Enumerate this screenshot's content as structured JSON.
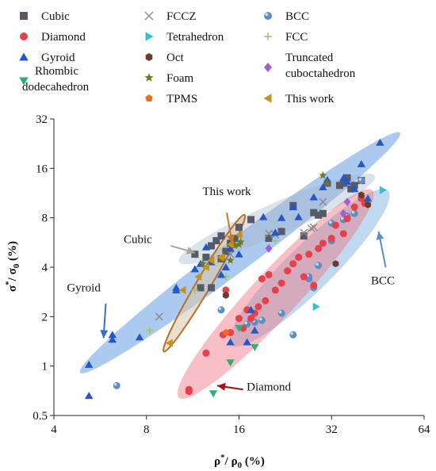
{
  "chart_data": {
    "type": "scatter",
    "xscale": "log2",
    "yscale": "log2",
    "xlim": [
      4,
      64
    ],
    "ylim": [
      0.5,
      32
    ],
    "x_ticks": [
      "4",
      "8",
      "16",
      "32",
      "64"
    ],
    "y_ticks": [
      "0.5",
      "1",
      "2",
      "4",
      "8",
      "16",
      "32"
    ],
    "xlabel_main": "ρ",
    "xlabel_sup": "*",
    "xlabel_mid": "/ ρ",
    "xlabel_sub": "0",
    "xlabel_unit": " (%)",
    "ylabel_main": "σ",
    "ylabel_sup": "*",
    "ylabel_mid": "/ σ",
    "ylabel_sub": "0",
    "ylabel_unit": " (%)",
    "legend": [
      {
        "label": "Cubic",
        "marker": "square",
        "color": "#555a66"
      },
      {
        "label": "FCCZ",
        "marker": "x",
        "color": "#8a8a8a"
      },
      {
        "label": "BCC",
        "marker": "sphere",
        "color": "#5b8fc4"
      },
      {
        "label": "Diamond",
        "marker": "circle",
        "color": "#e6404a"
      },
      {
        "label": "Tetrahedron",
        "marker": "tri-right",
        "color": "#2fc4cc"
      },
      {
        "label": "FCC",
        "marker": "plus",
        "color": "#9cc460"
      },
      {
        "label": "Gyroid",
        "marker": "tri-up",
        "color": "#2457c8"
      },
      {
        "label": "Oct",
        "marker": "hexagon",
        "color": "#6e3a30"
      },
      {
        "label": "Truncated",
        "label2": "cuboctahedron",
        "marker": "diamond",
        "color": "#a15fd6"
      },
      {
        "label": "Rhombic",
        "label2": "dodecahedron",
        "marker": "tri-down",
        "color": "#30b070"
      },
      {
        "label": "Foam",
        "marker": "star",
        "color": "#6e7a20"
      },
      {
        "label": "This work",
        "marker": "tri-left",
        "color": "#c8921a"
      },
      {
        "label": "TPMS",
        "marker": "pentagon",
        "color": "#f06a1e"
      }
    ],
    "regions": [
      {
        "name": "Gyroid",
        "color": "#3a7fd8",
        "opacity": 0.42
      },
      {
        "name": "BCC",
        "color": "#5b9cd6",
        "opacity": 0.38
      },
      {
        "name": "Cubic",
        "color": "#a4b6c8",
        "opacity": 0.4
      },
      {
        "name": "Diamond",
        "color": "#ee6a78",
        "opacity": 0.42
      },
      {
        "name": "This work",
        "color": "#d8c6a8",
        "opacity": 0.55,
        "stroke": "#b86e2a"
      }
    ],
    "annotations": [
      {
        "text": "This work",
        "x": 14.6,
        "y": 11.0
      },
      {
        "text": "Cubic",
        "x": 7.5,
        "y": 5.6
      },
      {
        "text": "Gyroid",
        "x": 5.0,
        "y": 2.85
      },
      {
        "text": "BCC",
        "x": 47.0,
        "y": 3.15
      },
      {
        "text": "Diamond",
        "x": 20.0,
        "y": 0.71
      }
    ],
    "series": [
      {
        "name": "Cubic",
        "marker": "square",
        "color": "#555a66",
        "points": [
          [
            12,
            3.0
          ],
          [
            12.5,
            4.6
          ],
          [
            13,
            5.4
          ],
          [
            13.5,
            5.8
          ],
          [
            14,
            6.2
          ],
          [
            14.5,
            5.0
          ],
          [
            15,
            5.6
          ],
          [
            15.5,
            6.0
          ],
          [
            16,
            7.0
          ],
          [
            17.5,
            7.8
          ],
          [
            20,
            6.0
          ],
          [
            22,
            6.6
          ],
          [
            24,
            9.5
          ],
          [
            26,
            6.2
          ],
          [
            28,
            8.6
          ],
          [
            29,
            8.3
          ],
          [
            30,
            8.5
          ],
          [
            31,
            13.0
          ],
          [
            34,
            12.6
          ],
          [
            35,
            13.0
          ],
          [
            36,
            14.0
          ],
          [
            37,
            12.0
          ],
          [
            38,
            12.6
          ],
          [
            40,
            13.5
          ],
          [
            11.5,
            4.8
          ],
          [
            13,
            3.0
          ],
          [
            14,
            4.5
          ]
        ]
      },
      {
        "name": "FCCZ",
        "marker": "x",
        "color": "#8a8a8a",
        "points": [
          [
            8.8,
            2.0
          ],
          [
            15,
            4.8
          ],
          [
            20,
            6.4
          ],
          [
            21,
            6.3
          ],
          [
            26,
            6.5
          ],
          [
            27.5,
            6.9
          ],
          [
            28,
            7.0
          ],
          [
            30,
            10.0
          ]
        ]
      },
      {
        "name": "BCC",
        "marker": "sphere",
        "color": "#5b8fc4",
        "points": [
          [
            6.4,
            0.76
          ],
          [
            14,
            2.2
          ],
          [
            17,
            1.8
          ],
          [
            19,
            1.9
          ],
          [
            22,
            2.1
          ],
          [
            24,
            1.55
          ],
          [
            27,
            3.4
          ],
          [
            27,
            3.5
          ],
          [
            28,
            3.0
          ],
          [
            29,
            4.1
          ],
          [
            32,
            5.8
          ],
          [
            32,
            7.4
          ],
          [
            35,
            7.8
          ],
          [
            36,
            8.2
          ],
          [
            38,
            8.5
          ],
          [
            40,
            13.5
          ],
          [
            18,
            1.85
          ]
        ]
      },
      {
        "name": "Diamond",
        "marker": "circle",
        "color": "#e6404a",
        "points": [
          [
            11,
            0.7
          ],
          [
            11,
            0.72
          ],
          [
            12.5,
            1.2
          ],
          [
            14.2,
            1.55
          ],
          [
            15,
            1.6
          ],
          [
            16,
            1.95
          ],
          [
            17,
            2.2
          ],
          [
            17.5,
            1.95
          ],
          [
            18,
            2.1
          ],
          [
            18.5,
            2.3
          ],
          [
            19,
            3.4
          ],
          [
            20,
            3.6
          ],
          [
            21,
            2.9
          ],
          [
            22,
            3.2
          ],
          [
            23,
            3.8
          ],
          [
            24,
            4.2
          ],
          [
            25,
            4.6
          ],
          [
            26,
            3.5
          ],
          [
            27,
            4.8
          ],
          [
            28,
            3.1
          ],
          [
            29,
            5.2
          ],
          [
            30,
            5.6
          ],
          [
            32,
            6.0
          ],
          [
            33,
            7.2
          ],
          [
            35,
            6.4
          ],
          [
            36,
            7.9
          ],
          [
            38,
            9.3
          ],
          [
            40,
            10.5
          ],
          [
            41,
            9.8
          ],
          [
            14.5,
            2.9
          ],
          [
            16.5,
            1.7
          ],
          [
            19.5,
            2.5
          ]
        ]
      },
      {
        "name": "Tetrahedron",
        "marker": "tri-right",
        "color": "#2fc4cc",
        "points": [
          [
            28.5,
            2.3
          ],
          [
            47,
            11.8
          ]
        ]
      },
      {
        "name": "FCC",
        "marker": "plus",
        "color": "#9cc460",
        "points": [
          [
            8.2,
            1.65
          ],
          [
            11.5,
            2.9
          ],
          [
            14.5,
            3.5
          ],
          [
            21,
            5.8
          ],
          [
            31,
            13.5
          ]
        ]
      },
      {
        "name": "Gyroid",
        "marker": "tri-up",
        "color": "#2457c8",
        "points": [
          [
            5.2,
            1.02
          ],
          [
            5.2,
            0.66
          ],
          [
            6.2,
            1.45
          ],
          [
            6.2,
            1.55
          ],
          [
            7.6,
            1.5
          ],
          [
            10,
            3.0
          ],
          [
            10,
            2.9
          ],
          [
            11.5,
            3.9
          ],
          [
            12,
            4.2
          ],
          [
            12.5,
            5.3
          ],
          [
            13,
            4.3
          ],
          [
            14,
            3.6
          ],
          [
            14.5,
            4.0
          ],
          [
            15,
            1.4
          ],
          [
            15,
            5.2
          ],
          [
            16,
            4.8
          ],
          [
            17.5,
            2.2
          ],
          [
            19.2,
            8.1
          ],
          [
            21,
            6.5
          ],
          [
            22,
            8.0
          ],
          [
            24,
            9.3
          ],
          [
            25,
            8.1
          ],
          [
            28,
            10.7
          ],
          [
            30,
            12.3
          ],
          [
            31,
            13.6
          ],
          [
            35,
            14.0
          ],
          [
            36,
            13.3
          ],
          [
            38,
            12.0
          ],
          [
            40,
            17.0
          ],
          [
            42,
            10.5
          ],
          [
            46,
            23.0
          ],
          [
            17,
            1.4
          ],
          [
            18,
            1.65
          ]
        ]
      },
      {
        "name": "Oct",
        "marker": "hexagon",
        "color": "#6e3a30",
        "points": [
          [
            14.5,
            2.7
          ],
          [
            33,
            4.2
          ],
          [
            40,
            11.0
          ],
          [
            42,
            9.6
          ]
        ]
      },
      {
        "name": "Truncated cuboctahedron",
        "marker": "diamond",
        "color": "#a15fd6",
        "points": [
          [
            20,
            5.2
          ],
          [
            36,
            10.0
          ],
          [
            35,
            8.5
          ]
        ]
      },
      {
        "name": "Rhombic dodecahedron",
        "marker": "tri-down",
        "color": "#30b070",
        "points": [
          [
            13.2,
            0.68
          ],
          [
            18,
            1.3
          ],
          [
            15,
            1.05
          ],
          [
            16,
            1.7
          ]
        ]
      },
      {
        "name": "Foam",
        "marker": "star",
        "color": "#6e7a20",
        "points": [
          [
            12.2,
            4.2
          ],
          [
            14,
            4.5
          ],
          [
            15,
            4.4
          ],
          [
            15.5,
            5.4
          ],
          [
            16,
            5.5
          ],
          [
            16.2,
            5.7
          ],
          [
            30,
            14.5
          ],
          [
            31,
            13.0
          ]
        ]
      },
      {
        "name": "This work",
        "marker": "tri-left",
        "color": "#c8921a",
        "points": [
          [
            9.5,
            1.38
          ],
          [
            10.5,
            2.9
          ],
          [
            11.8,
            3.5
          ],
          [
            12.5,
            4.0
          ],
          [
            13,
            4.4
          ],
          [
            14,
            4.6
          ],
          [
            15,
            5.5
          ],
          [
            16,
            6.3
          ]
        ]
      },
      {
        "name": "TPMS",
        "marker": "pentagon",
        "color": "#f06a1e",
        "points": [
          [
            14.5,
            1.6
          ]
        ]
      }
    ]
  }
}
